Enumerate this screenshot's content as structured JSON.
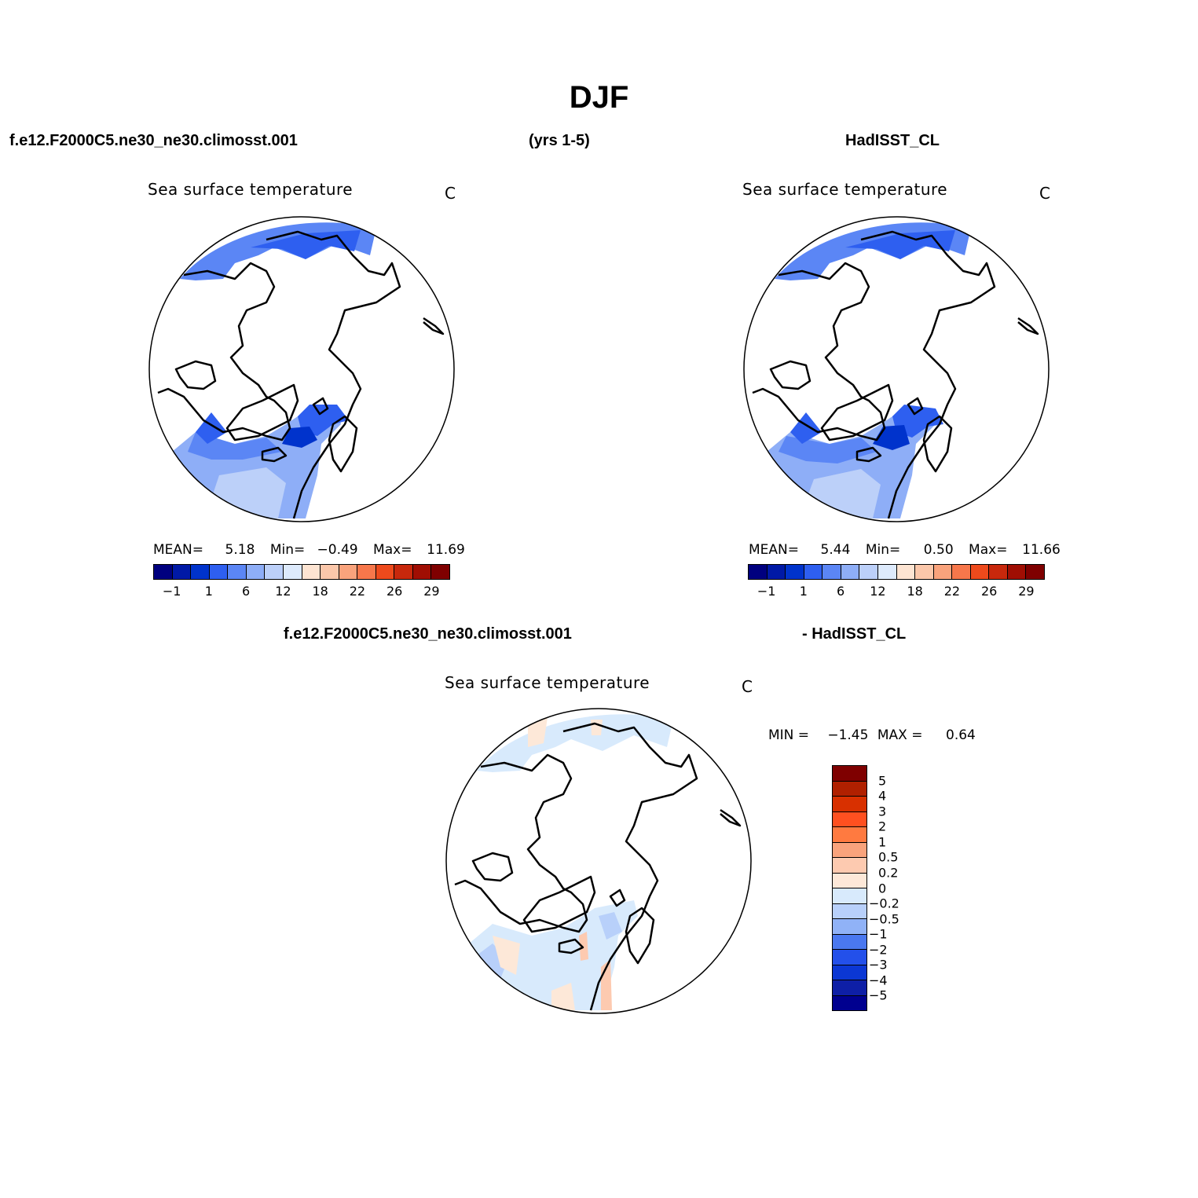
{
  "title": "DJF",
  "header": {
    "left": "f.e12.F2000C5.ne30_ne30.climosst.001",
    "middle": "(yrs 1-5)",
    "right": "HadISST_CL"
  },
  "diff_header": {
    "left": "f.e12.F2000C5.ne30_ne30.climosst.001",
    "right": "- HadISST_CL"
  },
  "panels": [
    {
      "title": "Sea surface temperature",
      "unit": "C",
      "mean_label": "MEAN=",
      "mean_value": "5.18",
      "min_label": "Min=",
      "min_value": "−0.49",
      "max_label": "Max=",
      "max_value": "11.69"
    },
    {
      "title": "Sea surface temperature",
      "unit": "C",
      "mean_label": "MEAN=",
      "mean_value": "5.44",
      "min_label": "Min=",
      "min_value": "0.50",
      "max_label": "Max=",
      "max_value": "11.66"
    }
  ],
  "diff_panel": {
    "title": "Sea surface temperature",
    "unit": "C",
    "min_label": "MIN =",
    "min_value": "−1.45",
    "max_label": "MAX =",
    "max_value": "0.64"
  },
  "colorbar": {
    "colors": [
      "#00007f",
      "#0019a6",
      "#0033cc",
      "#2e5ff0",
      "#5b86f5",
      "#8eaef7",
      "#bcd0f9",
      "#ddeafc",
      "#fde4d2",
      "#fbc7aa",
      "#f9a37c",
      "#f7774b",
      "#ee4a1c",
      "#c8280c",
      "#a00e03",
      "#7f0000"
    ],
    "labels": [
      "−1",
      "1",
      "6",
      "12",
      "18",
      "22",
      "26",
      "29"
    ]
  },
  "diff_colorbar": {
    "colors": [
      "#7f0000",
      "#b02000",
      "#d83000",
      "#ff5020",
      "#ff7a40",
      "#f9a37c",
      "#fdcab0",
      "#fde8d8",
      "#d8eafc",
      "#b8d0fa",
      "#90b2f7",
      "#4a78f0",
      "#2350ea",
      "#0b37d4",
      "#0e1fa6",
      "#00008f"
    ],
    "labels": [
      "5",
      "4",
      "3",
      "2",
      "1",
      "0.5",
      "0.2",
      "0",
      "−0.2",
      "−0.5",
      "−1",
      "−2",
      "−3",
      "−4",
      "−5"
    ]
  }
}
